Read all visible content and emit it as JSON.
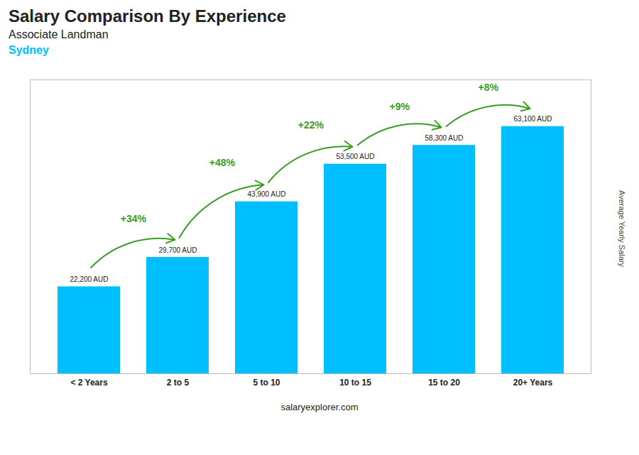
{
  "chart_data": {
    "type": "bar",
    "title": "Salary Comparison By Experience",
    "subtitle": "Associate Landman",
    "city": "Sydney",
    "ylabel": "Average Yearly Salary",
    "footer": "salaryexplorer.com",
    "categories": [
      "< 2 Years",
      "2 to 5",
      "5 to 10",
      "10 to 15",
      "15 to 20",
      "20+ Years"
    ],
    "values": [
      22200,
      29700,
      43900,
      53500,
      58300,
      63100
    ],
    "value_labels": [
      "22,200 AUD",
      "29,700 AUD",
      "43,900 AUD",
      "53,500 AUD",
      "58,300 AUD",
      "63,100 AUD"
    ],
    "data_labels": true,
    "annotations": [
      "+34%",
      "+48%",
      "+22%",
      "+9%",
      "+8%"
    ],
    "color": "#00BFFF",
    "ylim": [
      0,
      75000
    ],
    "yticks": [],
    "grid": false,
    "tick_labels": "x"
  }
}
